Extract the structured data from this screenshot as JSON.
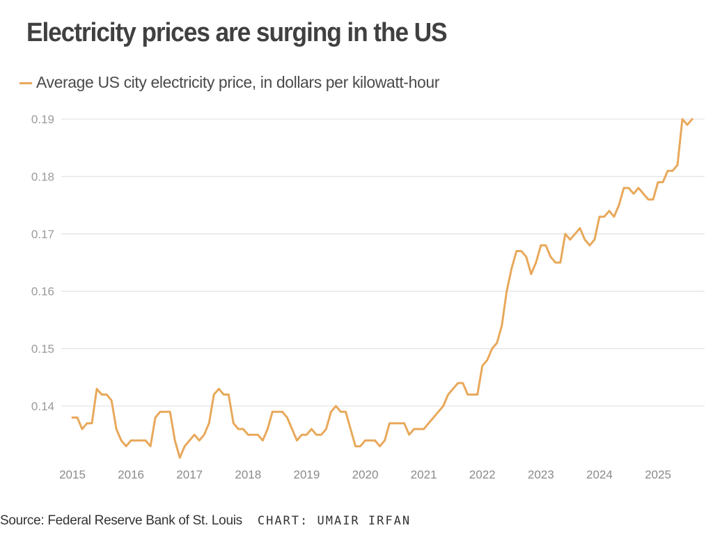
{
  "chart_data": {
    "type": "line",
    "title": "Electricity prices are surging in the US",
    "xlabel": "",
    "ylabel": "",
    "legend": {
      "position": "top-left",
      "entries": [
        "Average US city electricity price, in dollars per kilowatt-hour"
      ]
    },
    "grid": true,
    "ylim": [
      0.13,
      0.19
    ],
    "yticks": [
      "0.14",
      "0.15",
      "0.16",
      "0.17",
      "0.18",
      "0.19"
    ],
    "ytick_values": [
      0.14,
      0.15,
      0.16,
      0.17,
      0.18,
      0.19
    ],
    "xticks": [
      "2015",
      "2016",
      "2017",
      "2018",
      "2019",
      "2020",
      "2021",
      "2022",
      "2023",
      "2024",
      "2025"
    ],
    "x_start": "2015-01",
    "x_frequency": "monthly",
    "series": [
      {
        "name": "Average US city electricity price, in dollars per kilowatt-hour",
        "color": "#E8A85A",
        "values": [
          0.138,
          0.138,
          0.136,
          0.137,
          0.137,
          0.143,
          0.142,
          0.142,
          0.141,
          0.136,
          0.134,
          0.133,
          0.134,
          0.134,
          0.134,
          0.134,
          0.133,
          0.138,
          0.139,
          0.139,
          0.139,
          0.134,
          0.131,
          0.133,
          0.134,
          0.135,
          0.134,
          0.135,
          0.137,
          0.142,
          0.143,
          0.142,
          0.142,
          0.137,
          0.136,
          0.136,
          0.135,
          0.135,
          0.135,
          0.134,
          0.136,
          0.139,
          0.139,
          0.139,
          0.138,
          0.136,
          0.134,
          0.135,
          0.135,
          0.136,
          0.135,
          0.135,
          0.136,
          0.139,
          0.14,
          0.139,
          0.139,
          0.136,
          0.133,
          0.133,
          0.134,
          0.134,
          0.134,
          0.133,
          0.134,
          0.137,
          0.137,
          0.137,
          0.137,
          0.135,
          0.136,
          0.136,
          0.136,
          0.137,
          0.138,
          0.139,
          0.14,
          0.142,
          0.143,
          0.144,
          0.144,
          0.142,
          0.142,
          0.142,
          0.147,
          0.148,
          0.15,
          0.151,
          0.154,
          0.16,
          0.164,
          0.167,
          0.167,
          0.166,
          0.163,
          0.165,
          0.168,
          0.168,
          0.166,
          0.165,
          0.165,
          0.17,
          0.169,
          0.17,
          0.171,
          0.169,
          0.168,
          0.169,
          0.173,
          0.173,
          0.174,
          0.173,
          0.175,
          0.178,
          0.178,
          0.177,
          0.178,
          0.177,
          0.176,
          0.176,
          0.179,
          0.179,
          0.181,
          0.181,
          0.182,
          0.19,
          0.189,
          0.19
        ]
      }
    ]
  },
  "header": {
    "title": "Electricity prices are surging in the US",
    "legend_label": "Average US city electricity price, in dollars per kilowatt-hour"
  },
  "footer": {
    "source": "Source: Federal Reserve Bank of St. Louis",
    "credit": "CHART: UMAIR IRFAN"
  }
}
